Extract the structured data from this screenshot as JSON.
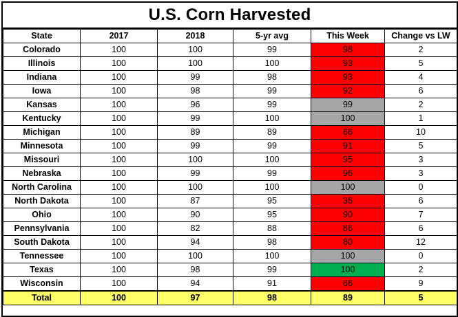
{
  "chart_data": {
    "type": "table",
    "title": "U.S. Corn Harvested",
    "columns": [
      "State",
      "2017",
      "2018",
      "5-yr avg",
      "This Week",
      "Change vs LW"
    ],
    "rows": [
      {
        "state": "Colorado",
        "y2017": 100,
        "y2018": 100,
        "avg5": 99,
        "this_week": 98,
        "change": 2,
        "status": "red"
      },
      {
        "state": "Illinois",
        "y2017": 100,
        "y2018": 100,
        "avg5": 100,
        "this_week": 93,
        "change": 5,
        "status": "red"
      },
      {
        "state": "Indiana",
        "y2017": 100,
        "y2018": 99,
        "avg5": 98,
        "this_week": 93,
        "change": 4,
        "status": "red"
      },
      {
        "state": "Iowa",
        "y2017": 100,
        "y2018": 98,
        "avg5": 99,
        "this_week": 92,
        "change": 6,
        "status": "red"
      },
      {
        "state": "Kansas",
        "y2017": 100,
        "y2018": 96,
        "avg5": 99,
        "this_week": 99,
        "change": 2,
        "status": "gray"
      },
      {
        "state": "Kentucky",
        "y2017": 100,
        "y2018": 99,
        "avg5": 100,
        "this_week": 100,
        "change": 1,
        "status": "gray"
      },
      {
        "state": "Michigan",
        "y2017": 100,
        "y2018": 89,
        "avg5": 89,
        "this_week": 66,
        "change": 10,
        "status": "red"
      },
      {
        "state": "Minnesota",
        "y2017": 100,
        "y2018": 99,
        "avg5": 99,
        "this_week": 91,
        "change": 5,
        "status": "red"
      },
      {
        "state": "Missouri",
        "y2017": 100,
        "y2018": 100,
        "avg5": 100,
        "this_week": 95,
        "change": 3,
        "status": "red"
      },
      {
        "state": "Nebraska",
        "y2017": 100,
        "y2018": 99,
        "avg5": 99,
        "this_week": 96,
        "change": 3,
        "status": "red"
      },
      {
        "state": "North Carolina",
        "y2017": 100,
        "y2018": 100,
        "avg5": 100,
        "this_week": 100,
        "change": 0,
        "status": "gray"
      },
      {
        "state": "North Dakota",
        "y2017": 100,
        "y2018": 87,
        "avg5": 95,
        "this_week": 36,
        "change": 6,
        "status": "red"
      },
      {
        "state": "Ohio",
        "y2017": 100,
        "y2018": 90,
        "avg5": 95,
        "this_week": 90,
        "change": 7,
        "status": "red"
      },
      {
        "state": "Pennsylvania",
        "y2017": 100,
        "y2018": 82,
        "avg5": 88,
        "this_week": 86,
        "change": 6,
        "status": "red"
      },
      {
        "state": "South Dakota",
        "y2017": 100,
        "y2018": 94,
        "avg5": 98,
        "this_week": 80,
        "change": 12,
        "status": "red"
      },
      {
        "state": "Tennessee",
        "y2017": 100,
        "y2018": 100,
        "avg5": 100,
        "this_week": 100,
        "change": 0,
        "status": "gray"
      },
      {
        "state": "Texas",
        "y2017": 100,
        "y2018": 98,
        "avg5": 99,
        "this_week": 100,
        "change": 2,
        "status": "green"
      },
      {
        "state": "Wisconsin",
        "y2017": 100,
        "y2018": 94,
        "avg5": 91,
        "this_week": 66,
        "change": 9,
        "status": "red"
      }
    ],
    "total": {
      "state": "Total",
      "y2017": 100,
      "y2018": 97,
      "avg5": 98,
      "this_week": 89,
      "change": 5
    },
    "colors": {
      "red": "#ff0000",
      "gray": "#a6a6a6",
      "green": "#00b050",
      "total_row": "#ffff66"
    }
  }
}
